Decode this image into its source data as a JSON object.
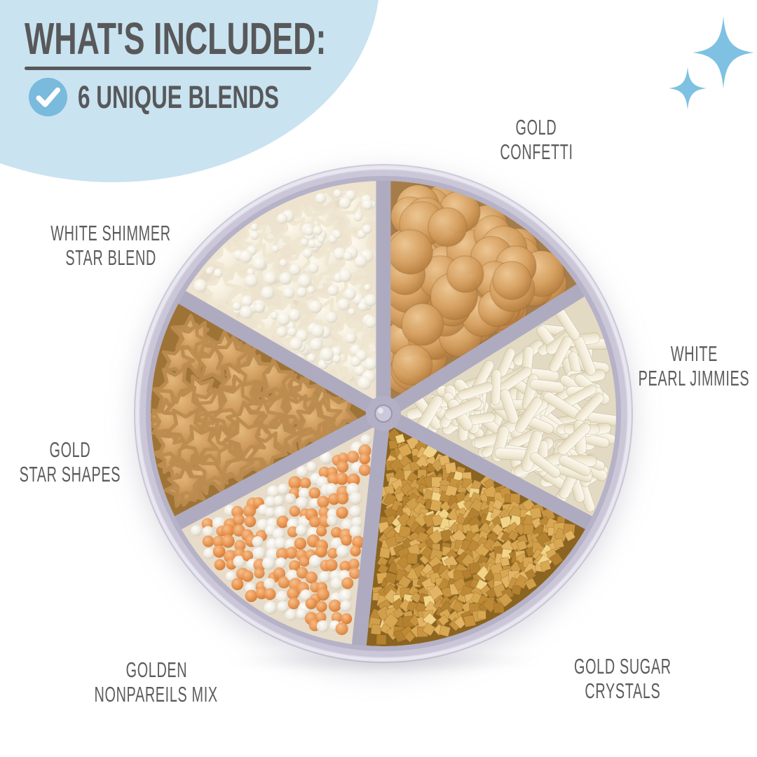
{
  "header": {
    "title": "WHAT'S INCLUDED:",
    "subtitle": "6 UNIQUE BLENDS"
  },
  "decor": {
    "blob_color": "#C9E3F0",
    "check_circle_color": "#79BADD",
    "check_icon": "check-mark",
    "sparkle_color": "#7FC1E2",
    "heading_color": "#58585A",
    "label_color": "#5C5C5C"
  },
  "product": {
    "container": {
      "rim_color": "#CBC7D9",
      "rim_inner_color": "#B6B2C7",
      "rim_highlight_color": "#E7E5EF",
      "divider_color": "#AEABC0",
      "hub_color": "#B3B0C5",
      "plastic_base_color": "#CFCBDC"
    },
    "compartments": [
      {
        "id": "gold-confetti",
        "label_line1": "GOLD",
        "label_line2": "CONFETTI",
        "type": "confetti",
        "start_angle": 0,
        "end_angle": 58,
        "base_color": "#A67C49"
      },
      {
        "id": "white-pearl-jimmies",
        "label_line1": "WHITE",
        "label_line2": "PEARL JIMMIES",
        "type": "jimmies",
        "start_angle": 58,
        "end_angle": 118,
        "base_color": "#E3DAC4"
      },
      {
        "id": "gold-sugar-crystals",
        "label_line1": "GOLD SUGAR",
        "label_line2": "CRYSTALS",
        "type": "crystals",
        "start_angle": 118,
        "end_angle": 186,
        "base_color": "#8A6420"
      },
      {
        "id": "golden-nonpareils-mix",
        "label_line1": "GOLDEN",
        "label_line2": "NONPAREILS MIX",
        "type": "nonpareils",
        "start_angle": 186,
        "end_angle": 242,
        "base_color": "#E7DCC9"
      },
      {
        "id": "gold-star-shapes",
        "label_line1": "GOLD",
        "label_line2": "STAR SHAPES",
        "type": "stars",
        "start_angle": 242,
        "end_angle": 300,
        "base_color": "#9E7336"
      },
      {
        "id": "white-shimmer-star-blend",
        "label_line1": "WHITE SHIMMER",
        "label_line2": "STAR BLEND",
        "type": "star_blend",
        "start_angle": 300,
        "end_angle": 360,
        "base_color": "#EDE3CF"
      }
    ],
    "palettes": {
      "confetti": {
        "gradient": [
          "#EDC794",
          "#D7A263",
          "#B27A3C"
        ],
        "edge": "#C28A4C",
        "stroke": "rgba(146,98,47,0.3)"
      },
      "jimmies": {
        "gradient": [
          "#FCF9F0",
          "#F2EBD8",
          "#E2D8BD"
        ],
        "stroke": "rgba(180,168,132,0.45)"
      },
      "crystals": {
        "colors": [
          "#D9A852",
          "#C89440",
          "#E2B463",
          "#BE8A36",
          "#CF9F4B",
          "#B3812F"
        ],
        "glint": "#F2D488",
        "stroke": "rgba(122,86,30,0.4)"
      },
      "nonpareils": {
        "orange": [
          "#F6BE88",
          "#EC9551",
          "#CA7630"
        ],
        "white": [
          "#FFFFFF",
          "#F0ECE2",
          "#CFC8B6"
        ],
        "orange_ratio": 0.56
      },
      "stars": {
        "gradient": [
          "#E5BA7E",
          "#D09C5E",
          "#B17E42"
        ],
        "stroke": "#BC8C50"
      },
      "star_blend": {
        "star_gradient": [
          "#FCF8EC",
          "#F3ECDA",
          "#E3D9C0"
        ],
        "star_stroke": "#F0E7D2",
        "pearl_gradient": [
          "#FFFDF8",
          "#F3EFE4",
          "#D7D1C0"
        ],
        "crystal_colors": [
          "#F0EADC",
          "#EAE2CF",
          "#F5F0E4",
          "#E4DAC5"
        ]
      }
    }
  }
}
